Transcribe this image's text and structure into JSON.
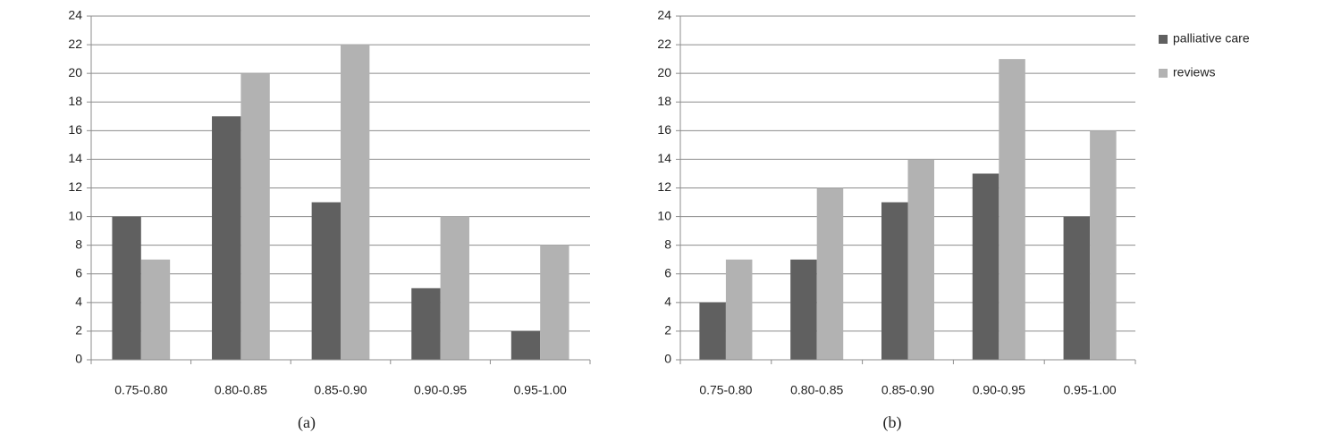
{
  "chart_data": [
    {
      "type": "bar",
      "caption": "(a)",
      "categories": [
        "0.75-0.80",
        "0.80-0.85",
        "0.85-0.90",
        "0.90-0.95",
        "0.95-1.00"
      ],
      "series": [
        {
          "color": "#606060",
          "values": [
            10,
            17,
            11,
            5,
            2
          ]
        },
        {
          "color": "#b2b2b2",
          "values": [
            7,
            20,
            22,
            10,
            8
          ]
        }
      ],
      "ylim": [
        0,
        24
      ],
      "yticks": [
        0,
        2,
        4,
        6,
        8,
        10,
        12,
        14,
        16,
        18,
        20,
        22,
        24
      ],
      "grid": true
    },
    {
      "type": "bar",
      "caption": "(b)",
      "categories": [
        "0.75-0.80",
        "0.80-0.85",
        "0.85-0.90",
        "0.90-0.95",
        "0.95-1.00"
      ],
      "series": [
        {
          "name": "palliative care",
          "color": "#606060",
          "values": [
            4,
            7,
            11,
            13,
            10
          ]
        },
        {
          "name": "reviews",
          "color": "#b2b2b2",
          "values": [
            7,
            12,
            14,
            21,
            16
          ]
        }
      ],
      "ylim": [
        0,
        24
      ],
      "yticks": [
        0,
        2,
        4,
        6,
        8,
        10,
        12,
        14,
        16,
        18,
        20,
        22,
        24
      ],
      "grid": true,
      "legend": "right"
    }
  ]
}
